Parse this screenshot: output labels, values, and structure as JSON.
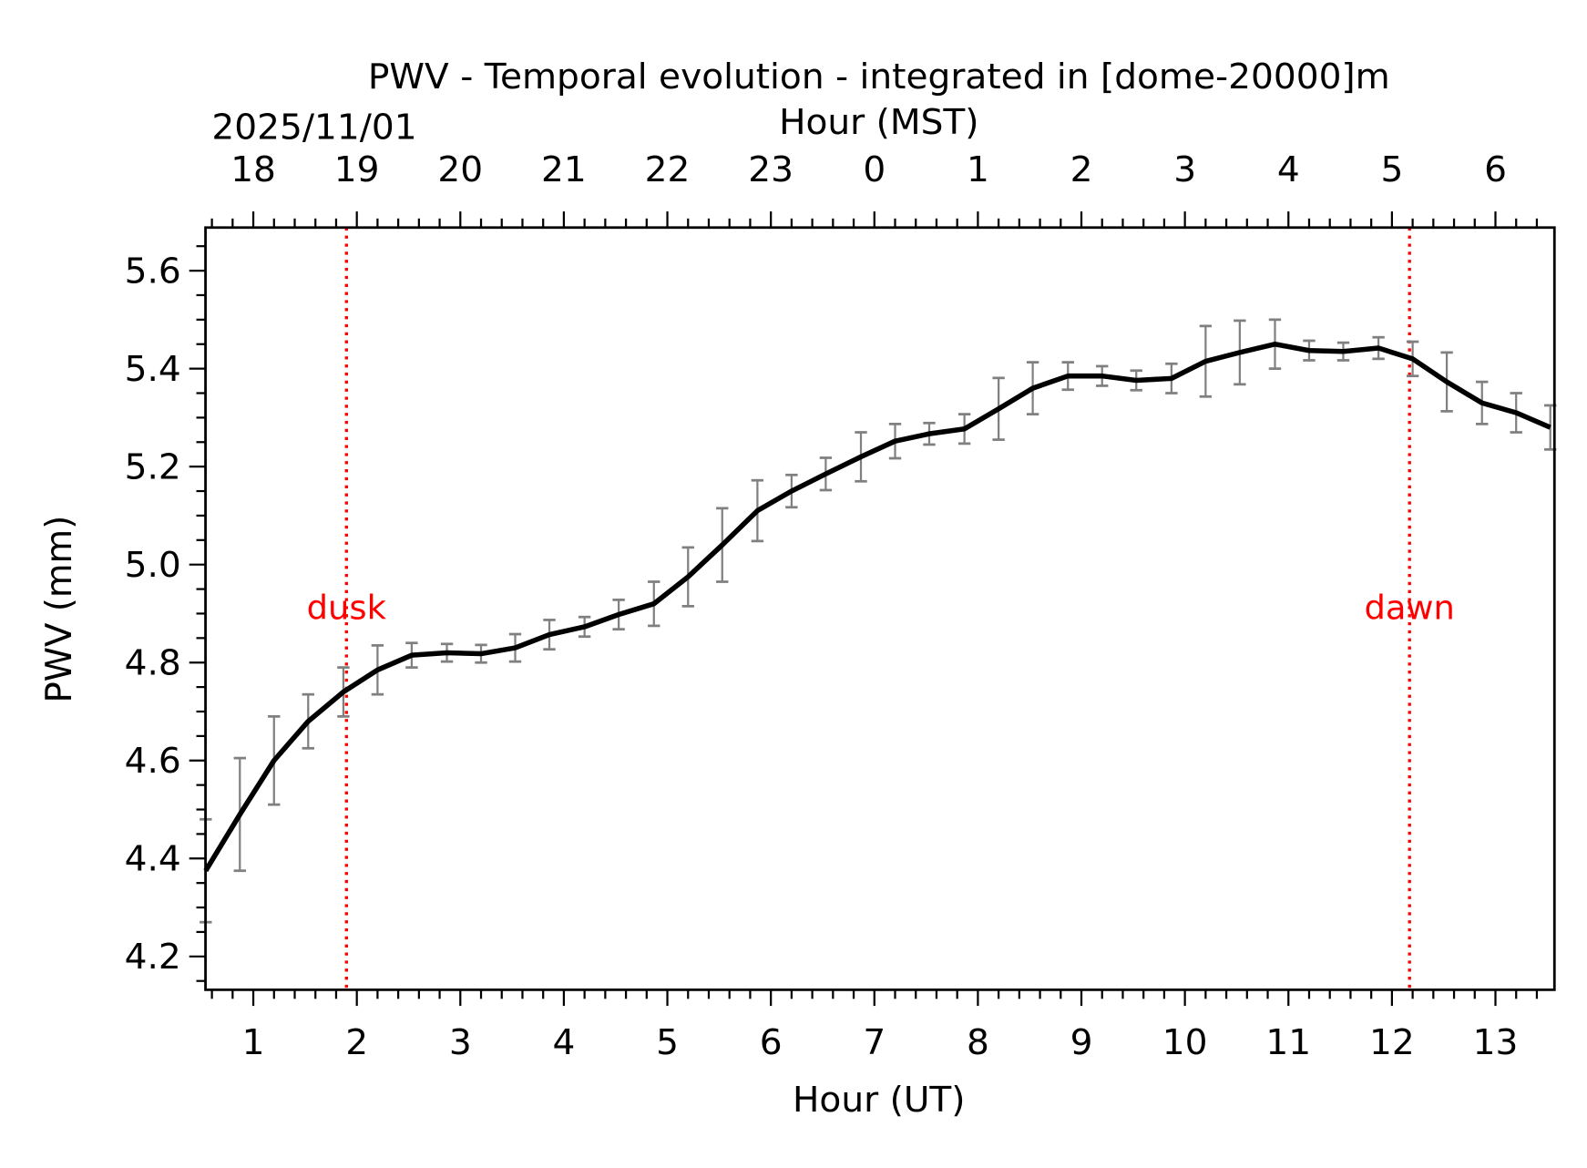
{
  "chart_data": {
    "type": "line",
    "title": "PWV - Temporal evolution - integrated in [dome-20000]m",
    "xlabel": "Hour (UT)",
    "ylabel": "PWV (mm)",
    "top_xlabel": "Hour (MST)",
    "date_label": "2025/11/01",
    "xlim": [
      0.538,
      13.57
    ],
    "ylim": [
      4.132,
      5.688
    ],
    "x_ticks": [
      1,
      2,
      3,
      4,
      5,
      6,
      7,
      8,
      9,
      10,
      11,
      12,
      13
    ],
    "x_tick_labels": [
      "1",
      "2",
      "3",
      "4",
      "5",
      "6",
      "7",
      "8",
      "9",
      "10",
      "11",
      "12",
      "13"
    ],
    "top_tick_labels": [
      "18",
      "19",
      "20",
      "21",
      "22",
      "23",
      "0",
      "1",
      "2",
      "3",
      "4",
      "5",
      "6"
    ],
    "y_ticks": [
      4.2,
      4.4,
      4.6,
      4.8,
      5.0,
      5.2,
      5.4,
      5.6
    ],
    "y_tick_labels": [
      "4.2",
      "4.4",
      "4.6",
      "4.8",
      "5.0",
      "5.2",
      "5.4",
      "5.6"
    ],
    "grid": false,
    "line_color": "#000000",
    "errorbar_color": "#808080",
    "x": [
      0.54,
      0.87,
      1.2,
      1.53,
      1.87,
      2.2,
      2.53,
      2.87,
      3.2,
      3.53,
      3.86,
      4.2,
      4.53,
      4.87,
      5.2,
      5.53,
      5.87,
      6.2,
      6.53,
      6.87,
      7.2,
      7.53,
      7.87,
      8.2,
      8.53,
      8.87,
      9.2,
      9.53,
      9.87,
      10.2,
      10.53,
      10.87,
      11.2,
      11.53,
      11.87,
      12.2,
      12.53,
      12.87,
      13.2,
      13.53
    ],
    "y": [
      4.375,
      4.49,
      4.6,
      4.68,
      4.74,
      4.785,
      4.815,
      4.82,
      4.818,
      4.83,
      4.857,
      4.873,
      4.898,
      4.92,
      4.975,
      5.04,
      5.11,
      5.15,
      5.185,
      5.22,
      5.252,
      5.267,
      5.277,
      5.318,
      5.36,
      5.385,
      5.385,
      5.376,
      5.38,
      5.415,
      5.433,
      5.45,
      5.437,
      5.435,
      5.442,
      5.42,
      5.373,
      5.33,
      5.31,
      5.28
    ],
    "yerr": [
      0.105,
      0.115,
      0.09,
      0.055,
      0.05,
      0.05,
      0.025,
      0.018,
      0.018,
      0.028,
      0.03,
      0.02,
      0.03,
      0.045,
      0.06,
      0.075,
      0.062,
      0.033,
      0.033,
      0.05,
      0.035,
      0.022,
      0.03,
      0.063,
      0.053,
      0.028,
      0.02,
      0.02,
      0.03,
      0.072,
      0.065,
      0.05,
      0.02,
      0.018,
      0.022,
      0.035,
      0.06,
      0.043,
      0.04,
      0.045
    ],
    "annotations": [
      {
        "label": "dusk",
        "x": 1.9,
        "color": "#ff0000"
      },
      {
        "label": "dawn",
        "x": 12.17,
        "color": "#ff0000"
      }
    ]
  }
}
